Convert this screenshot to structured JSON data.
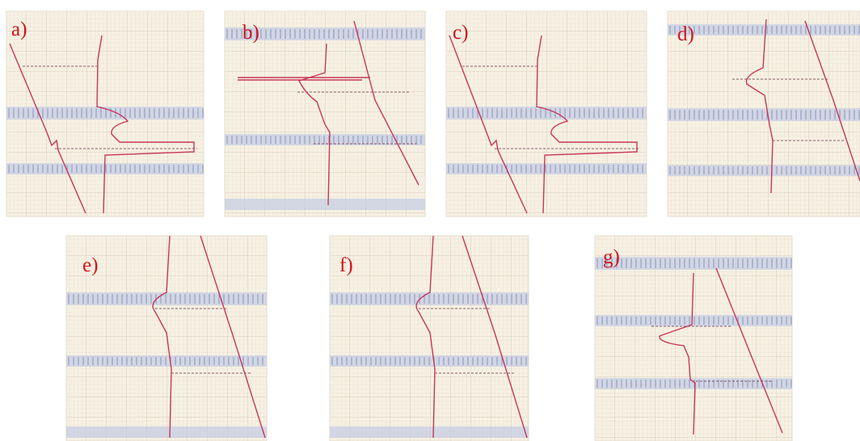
{
  "panels": [
    {
      "label": "a)"
    },
    {
      "label": "b)"
    },
    {
      "label": "c)"
    },
    {
      "label": "d)"
    },
    {
      "label": "e)"
    },
    {
      "label": "f)"
    },
    {
      "label": "g)"
    }
  ]
}
